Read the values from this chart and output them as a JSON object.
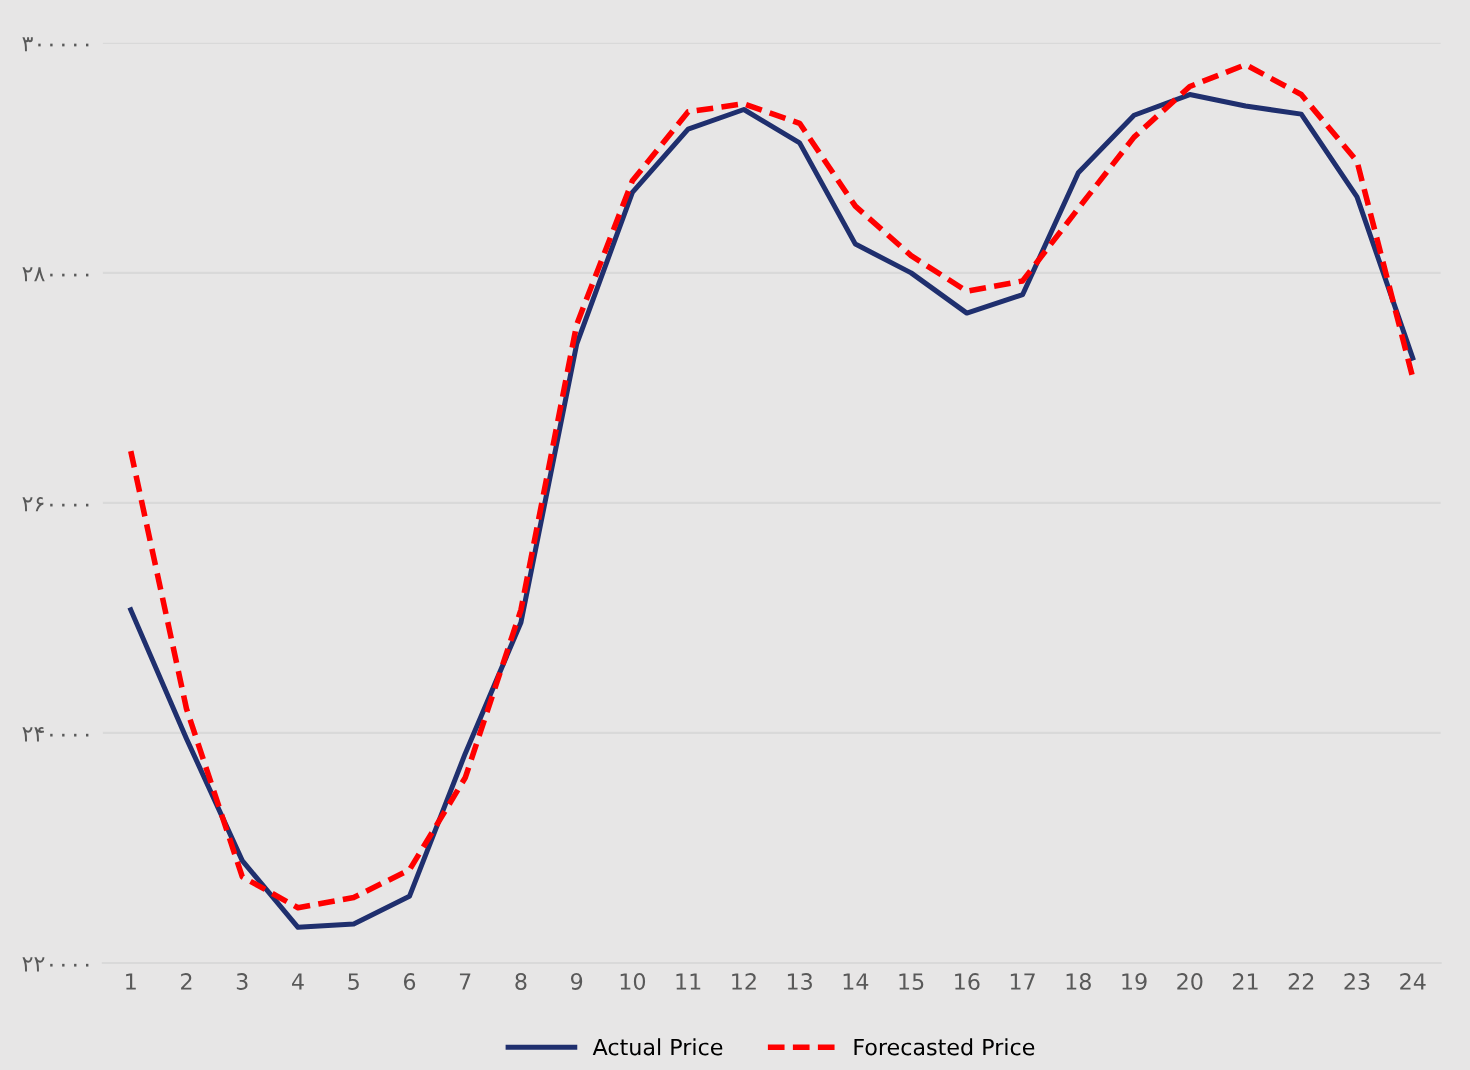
{
  "chart_data": {
    "type": "line",
    "categories": [
      "1",
      "2",
      "3",
      "4",
      "5",
      "6",
      "7",
      "8",
      "9",
      "10",
      "11",
      "12",
      "13",
      "14",
      "15",
      "16",
      "17",
      "18",
      "19",
      "20",
      "21",
      "22",
      "23",
      "24"
    ],
    "series": [
      {
        "name": "Actual Price",
        "color": "#1f2f6e",
        "line_style": "solid",
        "values": [
          250700,
          239500,
          228900,
          223100,
          223400,
          225800,
          238200,
          249600,
          273800,
          287000,
          292500,
          294200,
          291300,
          282500,
          280000,
          276500,
          278100,
          288700,
          293700,
          295500,
          294500,
          293800,
          286600,
          272600
        ]
      },
      {
        "name": "Forecasted Price",
        "color": "#ff0000",
        "line_style": "dashed",
        "values": [
          264500,
          242100,
          227500,
          224800,
          225700,
          228100,
          236100,
          250700,
          275500,
          288000,
          294000,
          294700,
          293000,
          285800,
          281500,
          278400,
          279300,
          285600,
          291800,
          296200,
          298100,
          295500,
          289700,
          270900
        ]
      }
    ],
    "ylim": [
      220000,
      300000
    ],
    "yticks": [
      {
        "value": 220000,
        "label": "۲۲۰۰۰۰"
      },
      {
        "value": 240000,
        "label": "۲۴۰۰۰۰"
      },
      {
        "value": 260000,
        "label": "۲۶۰۰۰۰"
      },
      {
        "value": 280000,
        "label": "۲۸۰۰۰۰"
      },
      {
        "value": 300000,
        "label": "۳۰۰۰۰۰"
      }
    ],
    "grid": "y",
    "legend": "bottom",
    "marker": "none"
  }
}
